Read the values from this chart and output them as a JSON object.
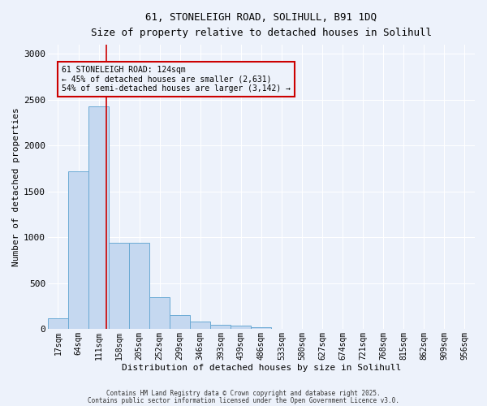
{
  "title_line1": "61, STONELEIGH ROAD, SOLIHULL, B91 1DQ",
  "title_line2": "Size of property relative to detached houses in Solihull",
  "xlabel": "Distribution of detached houses by size in Solihull",
  "ylabel": "Number of detached properties",
  "categories": [
    "17sqm",
    "64sqm",
    "111sqm",
    "158sqm",
    "205sqm",
    "252sqm",
    "299sqm",
    "346sqm",
    "393sqm",
    "439sqm",
    "486sqm",
    "533sqm",
    "580sqm",
    "627sqm",
    "674sqm",
    "721sqm",
    "768sqm",
    "815sqm",
    "862sqm",
    "909sqm",
    "956sqm"
  ],
  "values": [
    120,
    1720,
    2430,
    940,
    940,
    350,
    155,
    80,
    50,
    38,
    20,
    5,
    0,
    0,
    0,
    0,
    0,
    0,
    0,
    0,
    0
  ],
  "bar_color": "#c5d8f0",
  "bar_edge_color": "#6aaad4",
  "bar_edge_width": 0.7,
  "vline_x_index": 2.38,
  "vline_color": "#cc0000",
  "vline_linewidth": 1.2,
  "annotation_text": "61 STONELEIGH ROAD: 124sqm\n← 45% of detached houses are smaller (2,631)\n54% of semi-detached houses are larger (3,142) →",
  "annotation_box_edgecolor": "#cc0000",
  "ylim": [
    0,
    3100
  ],
  "yticks": [
    0,
    500,
    1000,
    1500,
    2000,
    2500,
    3000
  ],
  "background_color": "#edf2fb",
  "grid_color": "#ffffff",
  "footer_line1": "Contains HM Land Registry data © Crown copyright and database right 2025.",
  "footer_line2": "Contains public sector information licensed under the Open Government Licence v3.0."
}
